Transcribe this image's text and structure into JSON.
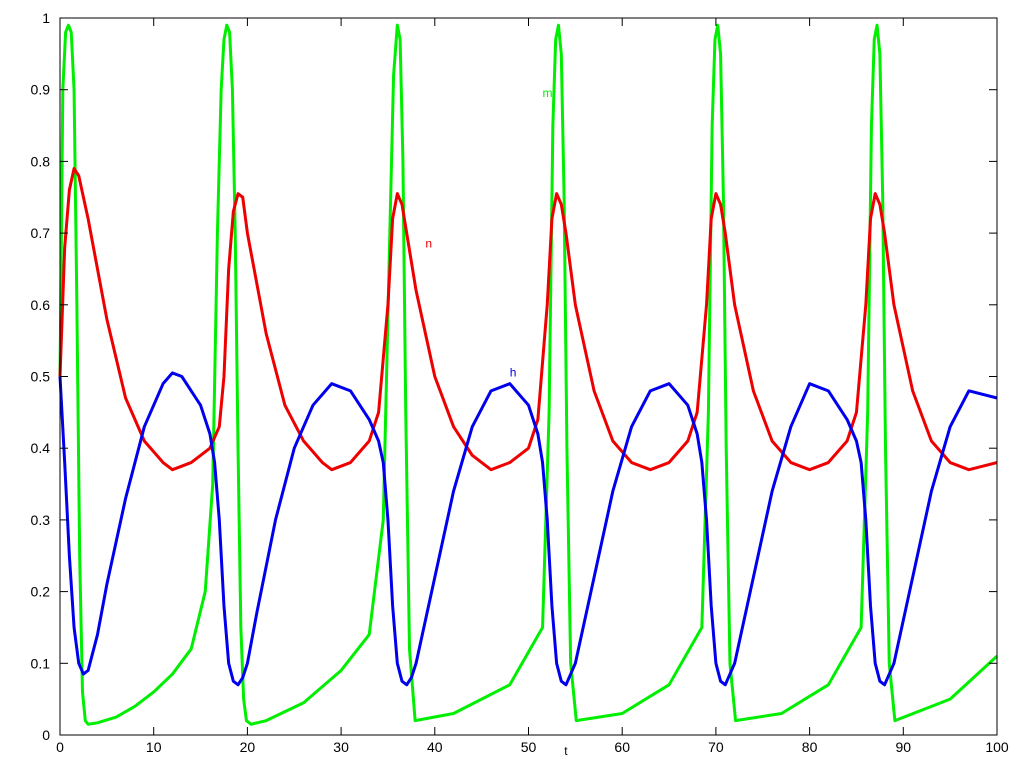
{
  "chart_data": {
    "type": "line",
    "title": "",
    "xlabel": "t",
    "ylabel": "",
    "xlim": [
      0,
      100
    ],
    "ylim": [
      0,
      1
    ],
    "grid": false,
    "legend": "inline labels",
    "x_ticks": [
      0,
      10,
      20,
      30,
      40,
      50,
      60,
      70,
      80,
      90,
      100
    ],
    "y_ticks": [
      0,
      0.1,
      0.2,
      0.3,
      0.4,
      0.5,
      0.6,
      0.7,
      0.8,
      0.9,
      1
    ],
    "x_tick_labels": [
      "0",
      "10",
      "20",
      "30",
      "40",
      "50",
      "60",
      "70",
      "80",
      "90",
      "100"
    ],
    "y_tick_labels": [
      "0",
      "0.1",
      "0.2",
      "0.3",
      "0.4",
      "0.5",
      "0.6",
      "0.7",
      "0.8",
      "0.9",
      "1"
    ],
    "series": [
      {
        "name": "m",
        "color": "#00ee00",
        "label_at": [
          51.5,
          0.89
        ],
        "x": [
          0,
          0.3,
          0.6,
          0.9,
          1.2,
          1.5,
          1.8,
          2.1,
          2.4,
          2.7,
          3.0,
          4,
          6,
          8,
          10,
          12,
          14,
          15.5,
          16.3,
          16.8,
          17.2,
          17.5,
          17.8,
          18.1,
          18.4,
          18.7,
          19.0,
          19.3,
          19.6,
          19.9,
          20.4,
          22,
          26,
          30,
          33,
          34.5,
          35.2,
          35.6,
          36.0,
          36.3,
          36.6,
          36.9,
          37.3,
          37.9,
          42,
          48,
          51.5,
          52.2,
          52.6,
          52.9,
          53.2,
          53.5,
          53.8,
          54.1,
          54.5,
          55.1,
          60,
          65,
          68.5,
          69.2,
          69.6,
          69.9,
          70.2,
          70.5,
          70.8,
          71.1,
          71.5,
          72.1,
          77,
          82,
          85.5,
          86.2,
          86.6,
          86.9,
          87.2,
          87.5,
          87.8,
          88.1,
          88.5,
          89.1,
          95,
          100
        ],
        "y": [
          0.5,
          0.9,
          0.98,
          0.99,
          0.98,
          0.9,
          0.6,
          0.25,
          0.06,
          0.02,
          0.015,
          0.017,
          0.025,
          0.04,
          0.06,
          0.085,
          0.12,
          0.2,
          0.35,
          0.7,
          0.9,
          0.97,
          0.99,
          0.98,
          0.9,
          0.7,
          0.4,
          0.15,
          0.05,
          0.02,
          0.015,
          0.02,
          0.045,
          0.09,
          0.14,
          0.3,
          0.7,
          0.92,
          0.99,
          0.97,
          0.8,
          0.45,
          0.12,
          0.02,
          0.03,
          0.07,
          0.15,
          0.45,
          0.85,
          0.97,
          0.99,
          0.95,
          0.75,
          0.4,
          0.1,
          0.02,
          0.03,
          0.07,
          0.15,
          0.45,
          0.85,
          0.97,
          0.99,
          0.95,
          0.75,
          0.4,
          0.1,
          0.02,
          0.03,
          0.07,
          0.15,
          0.45,
          0.85,
          0.97,
          0.99,
          0.95,
          0.75,
          0.4,
          0.1,
          0.02,
          0.05,
          0.11
        ]
      },
      {
        "name": "n",
        "color": "#ee0000",
        "label_at": [
          39,
          0.68
        ],
        "x": [
          0,
          0.5,
          1.0,
          1.5,
          2.0,
          3,
          5,
          7,
          9,
          11,
          12,
          14,
          16,
          17,
          17.5,
          18,
          18.5,
          19.0,
          19.5,
          20,
          22,
          24,
          26,
          28,
          29,
          31,
          33,
          34,
          35,
          35.5,
          36,
          36.5,
          37,
          38,
          40,
          42,
          44,
          46,
          48,
          50,
          51,
          52,
          52.5,
          53,
          53.5,
          54,
          55,
          57,
          59,
          61,
          63,
          65,
          67,
          68,
          69,
          69.5,
          70,
          70.5,
          71,
          72,
          74,
          76,
          78,
          80,
          82,
          84,
          85,
          86,
          86.5,
          87,
          87.5,
          88,
          89,
          91,
          93,
          95,
          97,
          100
        ],
        "y": [
          0.5,
          0.68,
          0.76,
          0.79,
          0.78,
          0.72,
          0.58,
          0.47,
          0.41,
          0.38,
          0.37,
          0.38,
          0.4,
          0.43,
          0.5,
          0.65,
          0.73,
          0.755,
          0.75,
          0.7,
          0.56,
          0.46,
          0.41,
          0.38,
          0.37,
          0.38,
          0.41,
          0.45,
          0.6,
          0.72,
          0.755,
          0.74,
          0.7,
          0.62,
          0.5,
          0.43,
          0.39,
          0.37,
          0.38,
          0.4,
          0.44,
          0.6,
          0.72,
          0.755,
          0.74,
          0.7,
          0.6,
          0.48,
          0.41,
          0.38,
          0.37,
          0.38,
          0.41,
          0.45,
          0.6,
          0.72,
          0.755,
          0.74,
          0.7,
          0.6,
          0.48,
          0.41,
          0.38,
          0.37,
          0.38,
          0.41,
          0.45,
          0.6,
          0.72,
          0.755,
          0.74,
          0.7,
          0.6,
          0.48,
          0.41,
          0.38,
          0.37,
          0.38
        ]
      },
      {
        "name": "h",
        "color": "#0000ee",
        "label_at": [
          48,
          0.5
        ],
        "x": [
          0,
          0.5,
          1.0,
          1.5,
          2.0,
          2.5,
          3,
          4,
          5,
          7,
          9,
          11,
          12,
          13,
          15,
          16,
          16.5,
          17,
          17.5,
          18,
          18.5,
          19,
          19.5,
          20,
          21,
          23,
          25,
          27,
          29,
          31,
          33,
          34,
          34.5,
          35,
          35.5,
          36,
          36.5,
          37,
          37.5,
          38,
          40,
          42,
          44,
          46,
          48,
          50,
          51,
          51.5,
          52,
          52.5,
          53,
          53.5,
          54,
          55,
          57,
          59,
          61,
          63,
          65,
          67,
          68,
          68.5,
          69,
          69.5,
          70,
          70.5,
          71,
          72,
          74,
          76,
          78,
          80,
          82,
          84,
          85,
          85.5,
          86,
          86.5,
          87,
          87.5,
          88,
          89,
          91,
          93,
          95,
          97,
          100
        ],
        "y": [
          0.5,
          0.38,
          0.25,
          0.15,
          0.1,
          0.085,
          0.09,
          0.14,
          0.21,
          0.33,
          0.43,
          0.49,
          0.505,
          0.5,
          0.46,
          0.42,
          0.38,
          0.3,
          0.18,
          0.1,
          0.075,
          0.07,
          0.08,
          0.1,
          0.17,
          0.3,
          0.4,
          0.46,
          0.49,
          0.48,
          0.44,
          0.41,
          0.38,
          0.3,
          0.18,
          0.1,
          0.075,
          0.07,
          0.08,
          0.1,
          0.22,
          0.34,
          0.43,
          0.48,
          0.49,
          0.46,
          0.42,
          0.38,
          0.3,
          0.18,
          0.1,
          0.075,
          0.07,
          0.1,
          0.22,
          0.34,
          0.43,
          0.48,
          0.49,
          0.46,
          0.42,
          0.38,
          0.3,
          0.18,
          0.1,
          0.075,
          0.07,
          0.1,
          0.22,
          0.34,
          0.43,
          0.49,
          0.48,
          0.44,
          0.41,
          0.38,
          0.3,
          0.18,
          0.1,
          0.075,
          0.07,
          0.1,
          0.22,
          0.34,
          0.43,
          0.48,
          0.47
        ]
      }
    ]
  }
}
